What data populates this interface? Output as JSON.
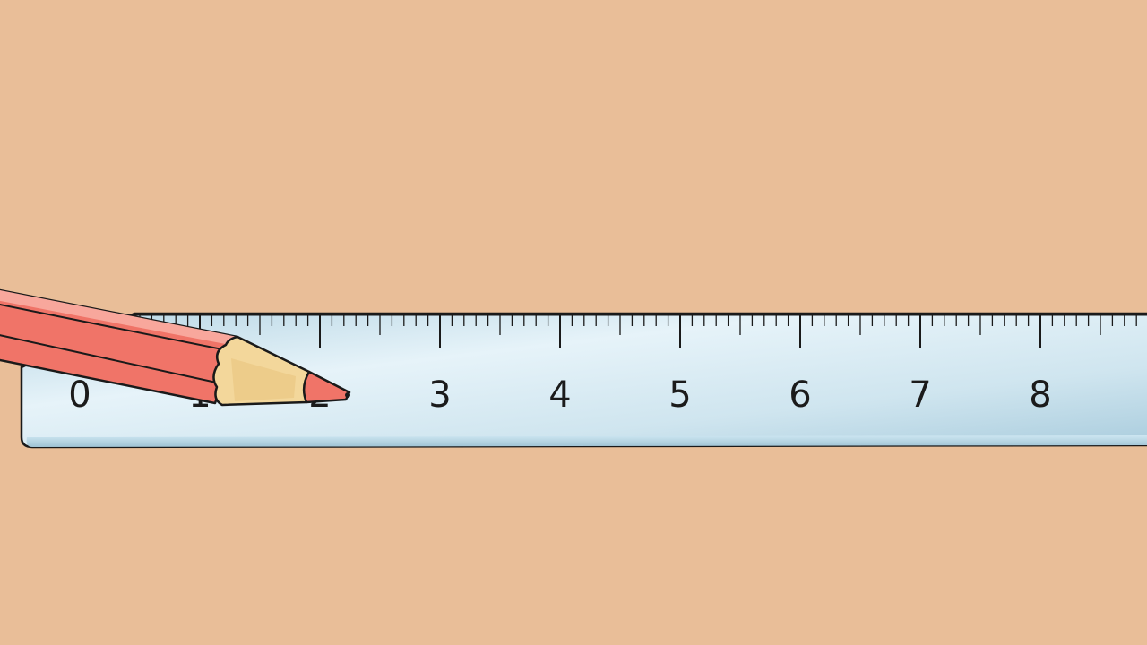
{
  "scene": {
    "background_color": "#E9BE98",
    "ruler": {
      "color": "#CFE6F0",
      "edge_color": "#1a1a1a",
      "numbers": [
        "0",
        "1",
        "2",
        "3",
        "4",
        "5",
        "6",
        "7",
        "8"
      ]
    },
    "pencil": {
      "body_color": "#F07468",
      "wood_color": "#F3D79B",
      "lead_color": "#F07468",
      "tip_at_mark": 2
    }
  }
}
